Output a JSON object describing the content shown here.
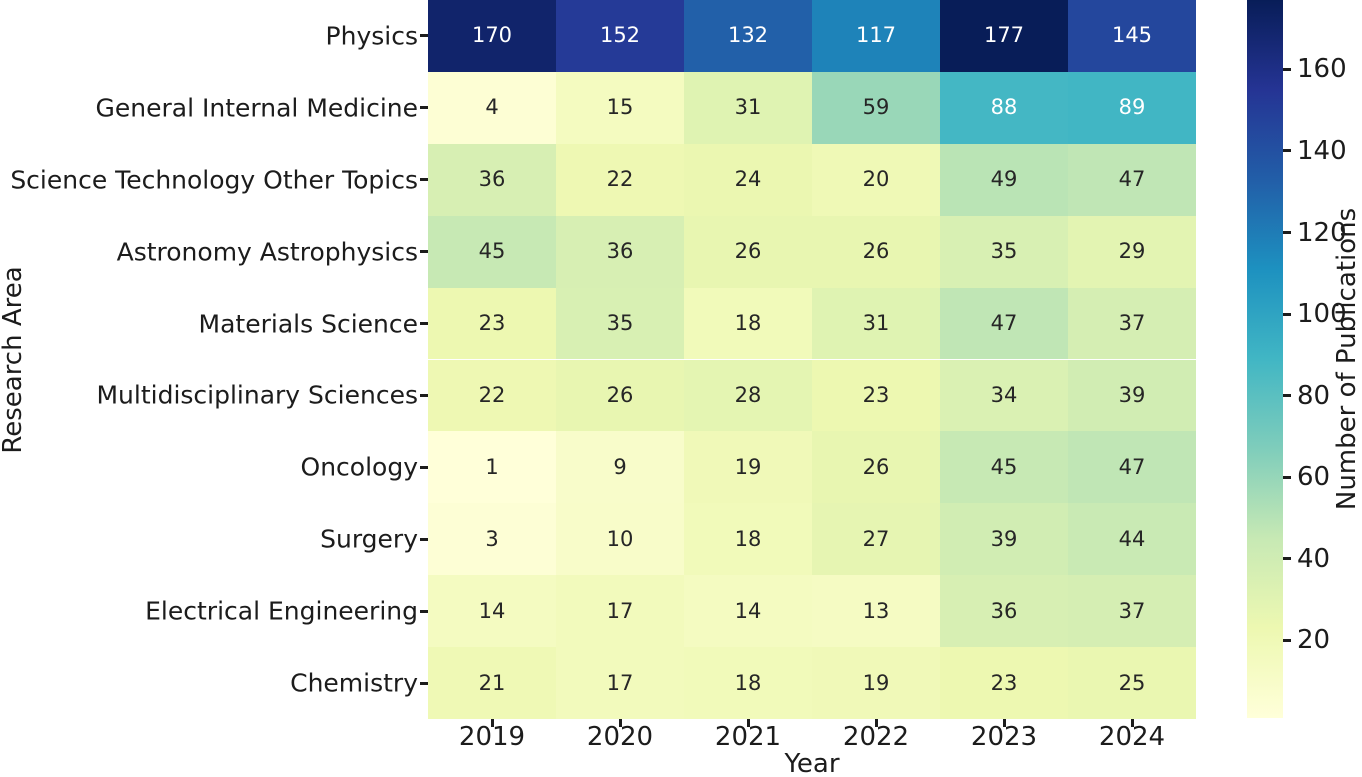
{
  "chart_data": {
    "type": "heatmap",
    "xlabel": "Year",
    "ylabel": "Research Area",
    "colorbar_label": "Number of Publications",
    "categories": [
      "2019",
      "2020",
      "2021",
      "2022",
      "2023",
      "2024"
    ],
    "rows": [
      "Physics",
      "General Internal Medicine",
      "Science Technology Other Topics",
      "Astronomy Astrophysics",
      "Materials Science",
      "Multidisciplinary Sciences",
      "Oncology",
      "Surgery",
      "Electrical Engineering",
      "Chemistry"
    ],
    "values": [
      [
        170,
        152,
        132,
        117,
        177,
        145
      ],
      [
        4,
        15,
        31,
        59,
        88,
        89
      ],
      [
        36,
        22,
        24,
        20,
        49,
        47
      ],
      [
        45,
        36,
        26,
        26,
        35,
        29
      ],
      [
        23,
        35,
        18,
        31,
        47,
        37
      ],
      [
        22,
        26,
        28,
        23,
        34,
        39
      ],
      [
        1,
        9,
        19,
        26,
        45,
        47
      ],
      [
        3,
        10,
        18,
        27,
        39,
        44
      ],
      [
        14,
        17,
        14,
        13,
        36,
        37
      ],
      [
        21,
        17,
        18,
        19,
        23,
        25
      ]
    ],
    "vmin": 1,
    "vmax": 177,
    "colorbar_ticks": [
      20,
      40,
      60,
      80,
      100,
      120,
      140,
      160
    ],
    "colormap": {
      "name": "YlGnBu",
      "stops": [
        "#ffffd9",
        "#edf8b1",
        "#c7e9b4",
        "#7fcdbb",
        "#41b6c4",
        "#1d91c0",
        "#225ea8",
        "#253494",
        "#081d58"
      ]
    },
    "annotation_text_dark": "#262626",
    "annotation_text_light": "#ffffff",
    "grid": false,
    "legend_position": "right-colorbar"
  }
}
